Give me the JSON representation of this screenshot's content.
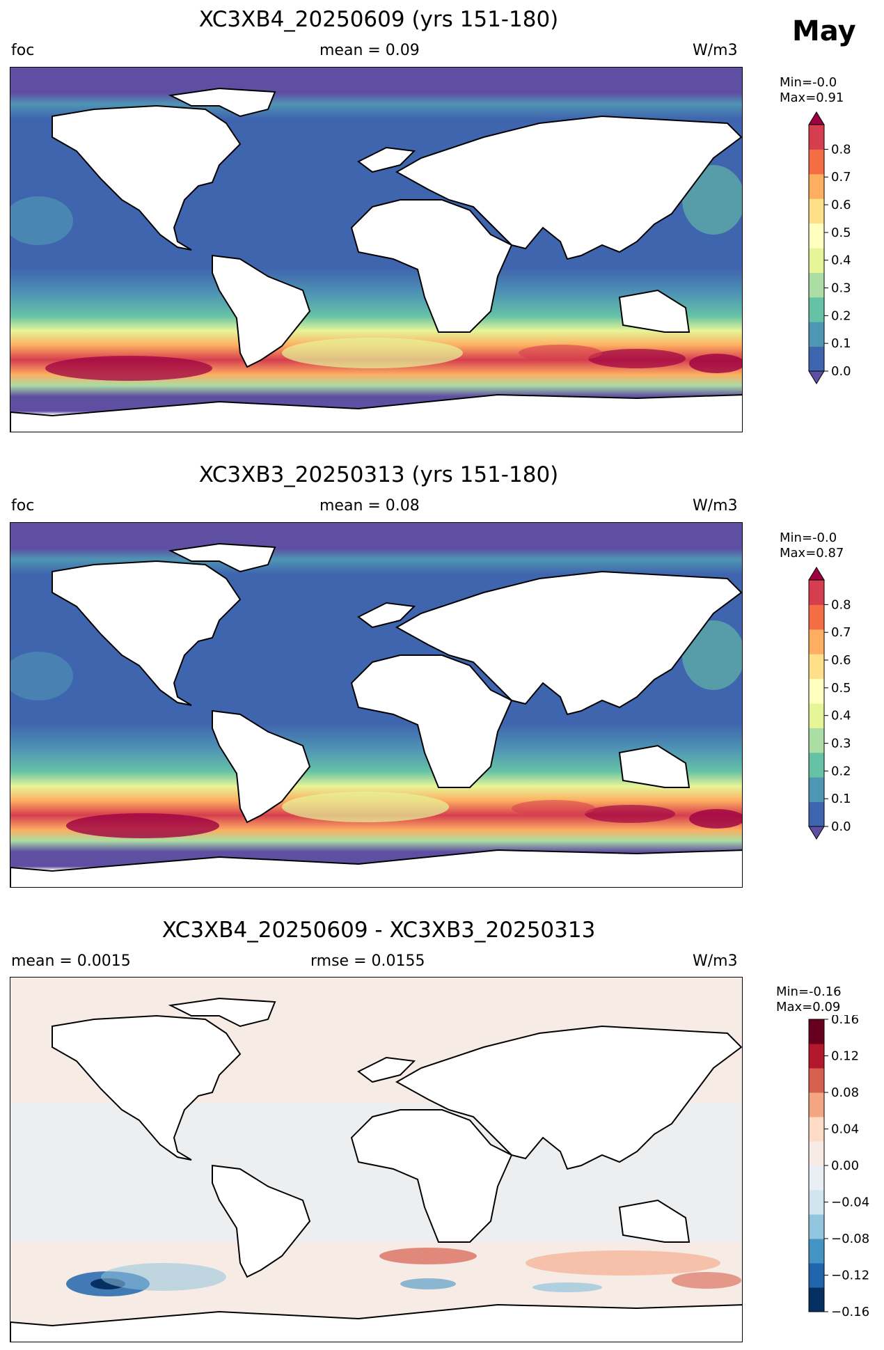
{
  "header": {
    "month": "May"
  },
  "panels": [
    {
      "id": "p1",
      "title": "XC3XB4_20250609 (yrs 151-180)",
      "left_label": "foc",
      "center_label": "mean = 0.09",
      "right_label": "W/m3",
      "min_label": "Min=-0.0",
      "max_label": "Max=0.91",
      "colormap": "Spectral_r",
      "colorbar_ticks": [
        "0.0",
        "0.1",
        "0.2",
        "0.3",
        "0.4",
        "0.5",
        "0.6",
        "0.7",
        "0.8"
      ],
      "colorbar_colors": [
        "#5e4fa2",
        "#3f65ae",
        "#4f95b4",
        "#66c2a5",
        "#abdda4",
        "#e6f598",
        "#ffffbf",
        "#fee08b",
        "#fdae61",
        "#f46d43",
        "#d53e4f",
        "#9e0142"
      ],
      "extend": "both"
    },
    {
      "id": "p2",
      "title": "XC3XB3_20250313 (yrs 151-180)",
      "left_label": "foc",
      "center_label": "mean = 0.08",
      "right_label": "W/m3",
      "min_label": "Min=-0.0",
      "max_label": "Max=0.87",
      "colormap": "Spectral_r",
      "colorbar_ticks": [
        "0.0",
        "0.1",
        "0.2",
        "0.3",
        "0.4",
        "0.5",
        "0.6",
        "0.7",
        "0.8"
      ],
      "colorbar_colors": [
        "#5e4fa2",
        "#3f65ae",
        "#4f95b4",
        "#66c2a5",
        "#abdda4",
        "#e6f598",
        "#ffffbf",
        "#fee08b",
        "#fdae61",
        "#f46d43",
        "#d53e4f",
        "#9e0142"
      ],
      "extend": "both"
    },
    {
      "id": "p3",
      "title": "XC3XB4_20250609 - XC3XB3_20250313",
      "left_label": "mean = 0.0015",
      "center_label": "rmse = 0.0155",
      "right_label": "W/m3",
      "min_label": "Min=-0.16",
      "max_label": "Max=0.09",
      "colormap": "RdBu_r",
      "colorbar_ticks": [
        "−0.16",
        "−0.12",
        "−0.08",
        "−0.04",
        "0.00",
        "0.04",
        "0.08",
        "0.12",
        "0.16"
      ],
      "colorbar_colors": [
        "#053061",
        "#2166ac",
        "#4393c3",
        "#92c5de",
        "#d1e5f0",
        "#e8f0f5",
        "#f7ebe5",
        "#fddbc7",
        "#f4a582",
        "#d6604d",
        "#b2182b",
        "#67001f"
      ],
      "extend": "neither"
    }
  ],
  "colors": {
    "land": "#ffffff",
    "coastline": "#000000",
    "ocean_low": "#4a6fb0",
    "ice_edge": "#5e4fa2",
    "diff_background": "#f4f1ef"
  }
}
